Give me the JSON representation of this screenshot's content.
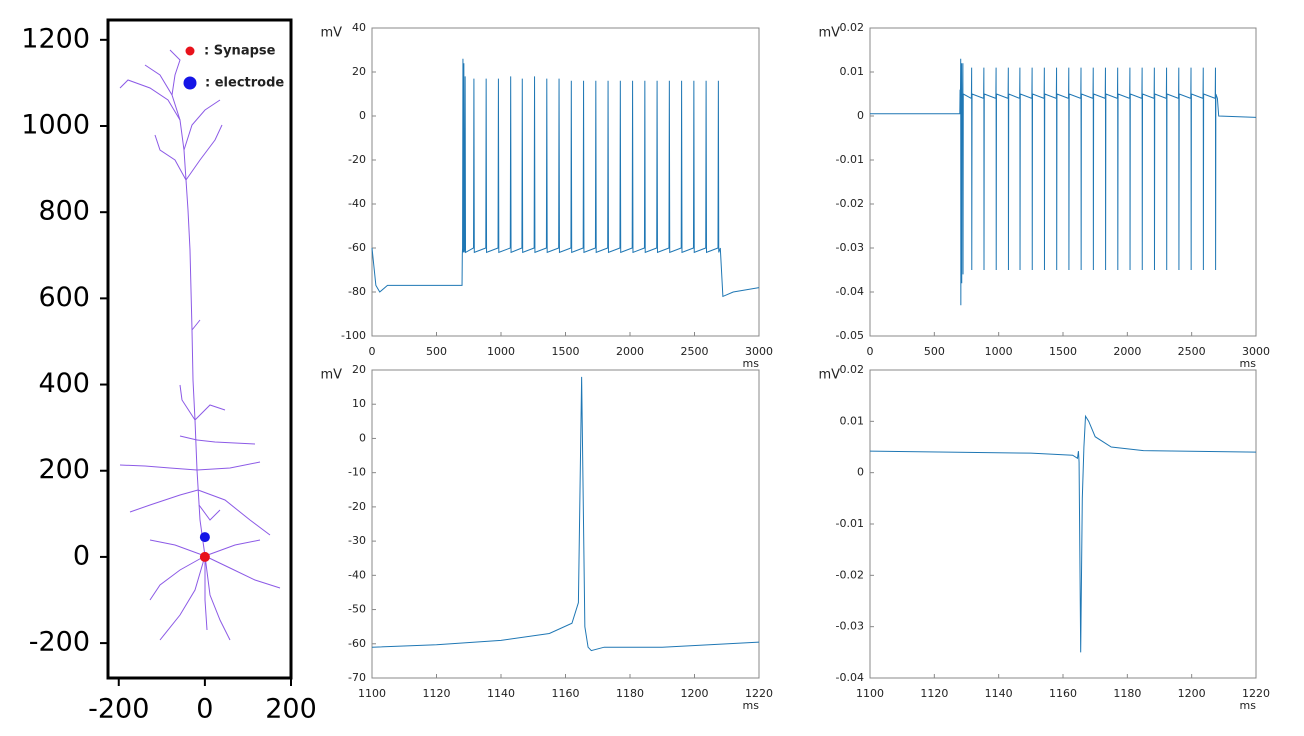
{
  "chart_data": [
    {
      "type": "scatter",
      "xlim": [
        -225,
        200
      ],
      "ylim": [
        -281,
        1246
      ],
      "xticks": [
        -200,
        0,
        200
      ],
      "yticks": [
        -200,
        0,
        200,
        400,
        600,
        800,
        1000,
        1200
      ],
      "series": [
        {
          "name": ": Synapse",
          "color": "#e8121b",
          "x": [
            0
          ],
          "values": [
            0
          ]
        },
        {
          "name": ": electrode",
          "color": "#1515e6",
          "x": [
            0
          ],
          "values": [
            46
          ]
        }
      ]
    },
    {
      "type": "line",
      "ylabel": "mV",
      "xlabel": "ms",
      "color": "#1f77b4",
      "xlim": [
        0,
        3000
      ],
      "ylim": [
        -100,
        40
      ],
      "xticks": [
        0,
        500,
        1000,
        1500,
        2000,
        2500,
        3000
      ],
      "yticks": [
        -100,
        -80,
        -60,
        -40,
        -20,
        0,
        20,
        40
      ],
      "x": [
        0,
        30,
        60,
        120,
        698,
        700,
        702,
        705,
        708,
        709,
        712,
        715,
        719,
        722,
        725,
        787,
        790,
        793,
        882,
        885,
        888,
        977,
        980,
        983,
        1072,
        1075,
        1078,
        1162,
        1165,
        1168,
        1257,
        1260,
        1263,
        1352,
        1355,
        1358,
        1447,
        1450,
        1453,
        1542,
        1545,
        1548,
        1637,
        1640,
        1643,
        1732,
        1735,
        1738,
        1827,
        1830,
        1833,
        1922,
        1925,
        1928,
        2017,
        2020,
        2023,
        2112,
        2115,
        2118,
        2207,
        2210,
        2213,
        2302,
        2305,
        2308,
        2397,
        2400,
        2403,
        2492,
        2495,
        2498,
        2587,
        2590,
        2593,
        2682,
        2685,
        2688,
        2700,
        2720,
        2800,
        3000
      ],
      "values": [
        -60,
        -77,
        -80,
        -77,
        -77,
        -63,
        -60,
        26,
        -62,
        -60,
        24,
        -62,
        -60,
        18,
        -62,
        -60,
        17,
        -62,
        -60,
        17,
        -62,
        -60,
        17,
        -62,
        -60,
        18,
        -62,
        -60,
        17,
        -62,
        -60,
        18,
        -62,
        -60,
        17,
        -62,
        -60,
        17,
        -62,
        -60,
        16,
        -62,
        -60,
        16,
        -62,
        -60,
        16,
        -62,
        -60,
        16,
        -62,
        -60,
        16,
        -62,
        -60,
        16,
        -62,
        -60,
        16,
        -62,
        -60,
        16,
        -62,
        -60,
        16,
        -62,
        -60,
        16,
        -62,
        -60,
        16,
        -62,
        -60,
        16,
        -62,
        -60,
        16,
        -62,
        -60,
        -82,
        -80,
        -78
      ]
    },
    {
      "type": "line",
      "ylabel": "mV",
      "xlabel": "ms",
      "color": "#1f77b4",
      "xlim": [
        0,
        3000
      ],
      "ylim": [
        -0.05,
        0.02
      ],
      "xticks": [
        0,
        500,
        1000,
        1500,
        2000,
        2500,
        3000
      ],
      "yticks": [
        -0.05,
        -0.04,
        -0.03,
        -0.02,
        -0.01,
        0,
        0.01,
        0.02
      ],
      "x": [
        0,
        698,
        700,
        703,
        705,
        706,
        708,
        710,
        712,
        713,
        715,
        720,
        722,
        723,
        725,
        788,
        790,
        791,
        793,
        883,
        885,
        886,
        888,
        978,
        980,
        981,
        983,
        1073,
        1075,
        1076,
        1078,
        1163,
        1165,
        1166,
        1168,
        1258,
        1260,
        1261,
        1263,
        1353,
        1355,
        1356,
        1358,
        1448,
        1450,
        1451,
        1453,
        1543,
        1545,
        1546,
        1548,
        1638,
        1640,
        1641,
        1643,
        1733,
        1735,
        1736,
        1738,
        1828,
        1830,
        1831,
        1833,
        1923,
        1925,
        1926,
        1928,
        2018,
        2020,
        2021,
        2023,
        2113,
        2115,
        2116,
        2118,
        2208,
        2210,
        2211,
        2213,
        2303,
        2305,
        2306,
        2308,
        2398,
        2400,
        2401,
        2403,
        2493,
        2495,
        2496,
        2498,
        2588,
        2590,
        2591,
        2593,
        2683,
        2685,
        2686,
        2688,
        2700,
        2710,
        3000
      ],
      "values": [
        0.0005,
        0.0005,
        0.006,
        0.004,
        0.013,
        -0.043,
        0.005,
        0.004,
        0.012,
        -0.038,
        0.005,
        0.004,
        0.012,
        -0.036,
        0.005,
        0.004,
        0.011,
        -0.035,
        0.005,
        0.004,
        0.011,
        -0.035,
        0.005,
        0.004,
        0.011,
        -0.035,
        0.005,
        0.004,
        0.011,
        -0.035,
        0.005,
        0.004,
        0.011,
        -0.035,
        0.005,
        0.004,
        0.011,
        -0.035,
        0.005,
        0.004,
        0.011,
        -0.035,
        0.005,
        0.004,
        0.011,
        -0.035,
        0.005,
        0.004,
        0.011,
        -0.035,
        0.005,
        0.004,
        0.011,
        -0.035,
        0.005,
        0.004,
        0.011,
        -0.035,
        0.005,
        0.004,
        0.011,
        -0.035,
        0.005,
        0.004,
        0.011,
        -0.035,
        0.005,
        0.004,
        0.011,
        -0.035,
        0.005,
        0.004,
        0.011,
        -0.035,
        0.005,
        0.004,
        0.011,
        -0.035,
        0.005,
        0.004,
        0.011,
        -0.035,
        0.005,
        0.004,
        0.011,
        -0.035,
        0.005,
        0.004,
        0.011,
        -0.035,
        0.005,
        0.004,
        0.011,
        -0.035,
        0.005,
        0.004,
        0.011,
        -0.035,
        0.005,
        0.004,
        0,
        -0.0003
      ]
    },
    {
      "type": "line",
      "ylabel": "mV",
      "xlabel": "ms",
      "color": "#1f77b4",
      "xlim": [
        1100,
        1220
      ],
      "ylim": [
        -70,
        20
      ],
      "xticks": [
        1100,
        1120,
        1140,
        1160,
        1180,
        1200,
        1220
      ],
      "yticks": [
        -70,
        -60,
        -50,
        -40,
        -30,
        -20,
        -10,
        0,
        10,
        20
      ],
      "x": [
        1100,
        1120,
        1140,
        1155,
        1162,
        1164,
        1165,
        1166,
        1167,
        1168,
        1172,
        1190,
        1220
      ],
      "values": [
        -61,
        -60.3,
        -59,
        -57,
        -54,
        -48,
        18,
        -55,
        -61,
        -62,
        -61,
        -61,
        -59.5
      ]
    },
    {
      "type": "line",
      "ylabel": "mV",
      "xlabel": "ms",
      "color": "#1f77b4",
      "xlim": [
        1100,
        1220
      ],
      "ylim": [
        -0.04,
        0.02
      ],
      "xticks": [
        1100,
        1120,
        1140,
        1160,
        1180,
        1200,
        1220
      ],
      "yticks": [
        -0.04,
        -0.03,
        -0.02,
        -0.01,
        0,
        0.01,
        0.02
      ],
      "x": [
        1100,
        1150,
        1163,
        1164.5,
        1164.8,
        1165,
        1165.5,
        1166,
        1166.5,
        1167,
        1168,
        1170,
        1175,
        1185,
        1220
      ],
      "values": [
        0.0042,
        0.0038,
        0.0034,
        0.0028,
        0.0042,
        0.002,
        -0.035,
        -0.005,
        0.005,
        0.011,
        0.01,
        0.007,
        0.005,
        0.0043,
        0.004
      ]
    }
  ]
}
